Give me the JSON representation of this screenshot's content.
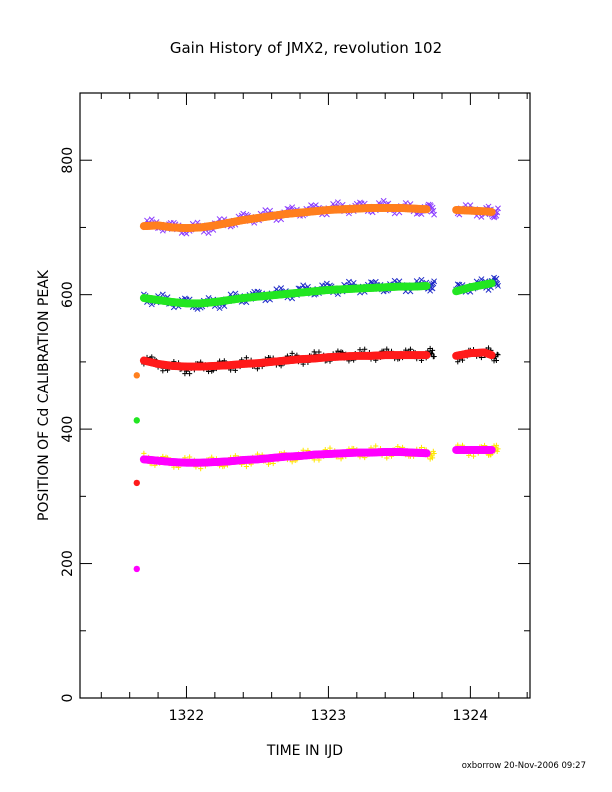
{
  "chart_data": {
    "type": "scatter",
    "title": "Gain History of JMX2, revolution 102",
    "xlabel": "TIME IN IJD",
    "ylabel": "POSITION OF Cd CALIBRATION PEAK",
    "xlim": [
      1321.25,
      1324.42
    ],
    "ylim": [
      0,
      900
    ],
    "xticks": [
      1322,
      1323,
      1324
    ],
    "yticks": [
      0,
      200,
      400,
      600,
      800
    ],
    "grid": false,
    "legend": "none",
    "series": [
      {
        "color": "#8b3dff",
        "marker": "x",
        "points": [
          [
            1321.7,
            702
          ],
          [
            1321.8,
            705
          ],
          [
            1321.9,
            700
          ],
          [
            1322.0,
            698
          ],
          [
            1322.1,
            699
          ],
          [
            1322.2,
            702
          ],
          [
            1322.3,
            708
          ],
          [
            1322.4,
            713
          ],
          [
            1322.5,
            716
          ],
          [
            1322.6,
            718
          ],
          [
            1322.7,
            721
          ],
          [
            1322.8,
            724
          ],
          [
            1322.9,
            726
          ],
          [
            1323.0,
            728
          ],
          [
            1323.1,
            729
          ],
          [
            1323.2,
            730
          ],
          [
            1323.3,
            730
          ],
          [
            1323.4,
            731
          ],
          [
            1323.5,
            729
          ],
          [
            1323.6,
            727
          ],
          [
            1323.7,
            727
          ],
          [
            1323.9,
            726
          ],
          [
            1324.0,
            725
          ],
          [
            1324.1,
            724
          ],
          [
            1324.15,
            722
          ]
        ]
      },
      {
        "color": "#1f2bc8",
        "marker": "x",
        "points": [
          [
            1321.7,
            597
          ],
          [
            1321.8,
            592
          ],
          [
            1321.9,
            590
          ],
          [
            1322.0,
            587
          ],
          [
            1322.1,
            586
          ],
          [
            1322.2,
            587
          ],
          [
            1322.3,
            592
          ],
          [
            1322.4,
            596
          ],
          [
            1322.5,
            598
          ],
          [
            1322.6,
            600
          ],
          [
            1322.7,
            602
          ],
          [
            1322.8,
            605
          ],
          [
            1322.9,
            607
          ],
          [
            1323.0,
            609
          ],
          [
            1323.1,
            610
          ],
          [
            1323.2,
            611
          ],
          [
            1323.3,
            612
          ],
          [
            1323.4,
            612
          ],
          [
            1323.5,
            613
          ],
          [
            1323.6,
            613
          ],
          [
            1323.7,
            614
          ],
          [
            1323.9,
            608
          ],
          [
            1324.0,
            612
          ],
          [
            1324.1,
            615
          ],
          [
            1324.15,
            617
          ]
        ]
      },
      {
        "color": "#000000",
        "marker": "+",
        "points": [
          [
            1321.7,
            503
          ],
          [
            1321.8,
            497
          ],
          [
            1321.9,
            492
          ],
          [
            1322.0,
            490
          ],
          [
            1322.1,
            492
          ],
          [
            1322.2,
            493
          ],
          [
            1322.3,
            495
          ],
          [
            1322.4,
            497
          ],
          [
            1322.5,
            498
          ],
          [
            1322.6,
            500
          ],
          [
            1322.7,
            503
          ],
          [
            1322.8,
            505
          ],
          [
            1322.9,
            507
          ],
          [
            1323.0,
            508
          ],
          [
            1323.1,
            509
          ],
          [
            1323.2,
            510
          ],
          [
            1323.3,
            511
          ],
          [
            1323.4,
            511
          ],
          [
            1323.5,
            511
          ],
          [
            1323.6,
            511
          ],
          [
            1323.7,
            511
          ],
          [
            1323.9,
            508
          ],
          [
            1324.0,
            511
          ],
          [
            1324.1,
            515
          ],
          [
            1324.15,
            510
          ]
        ]
      },
      {
        "color": "#ffe600",
        "marker": "+",
        "points": [
          [
            1321.7,
            356
          ],
          [
            1321.8,
            353
          ],
          [
            1321.9,
            351
          ],
          [
            1322.0,
            350
          ],
          [
            1322.1,
            350
          ],
          [
            1322.2,
            350
          ],
          [
            1322.3,
            352
          ],
          [
            1322.4,
            353
          ],
          [
            1322.5,
            354
          ],
          [
            1322.6,
            356
          ],
          [
            1322.7,
            358
          ],
          [
            1322.8,
            360
          ],
          [
            1322.9,
            362
          ],
          [
            1323.0,
            363
          ],
          [
            1323.1,
            364
          ],
          [
            1323.2,
            365
          ],
          [
            1323.3,
            366
          ],
          [
            1323.4,
            366
          ],
          [
            1323.5,
            366
          ],
          [
            1323.6,
            366
          ],
          [
            1323.7,
            364
          ],
          [
            1323.9,
            368
          ],
          [
            1324.0,
            368
          ],
          [
            1324.1,
            368
          ],
          [
            1324.15,
            368
          ]
        ]
      },
      {
        "color": "#ff7f1e",
        "marker": "fit",
        "points": [
          [
            1321.65,
            480
          ],
          [
            1321.7,
            702
          ],
          [
            1321.8,
            703
          ],
          [
            1321.9,
            700
          ],
          [
            1322.0,
            699
          ],
          [
            1322.1,
            700
          ],
          [
            1322.2,
            703
          ],
          [
            1322.3,
            707
          ],
          [
            1322.4,
            711
          ],
          [
            1322.5,
            714
          ],
          [
            1322.6,
            717
          ],
          [
            1322.7,
            720
          ],
          [
            1322.8,
            722
          ],
          [
            1322.9,
            724
          ],
          [
            1323.0,
            726
          ],
          [
            1323.1,
            727
          ],
          [
            1323.2,
            728
          ],
          [
            1323.3,
            729
          ],
          [
            1323.4,
            729
          ],
          [
            1323.5,
            729
          ],
          [
            1323.6,
            728
          ],
          [
            1323.7,
            727
          ],
          [
            1323.9,
            726
          ],
          [
            1324.0,
            725
          ],
          [
            1324.1,
            724
          ],
          [
            1324.15,
            723
          ]
        ]
      },
      {
        "color": "#22e622",
        "marker": "fit",
        "points": [
          [
            1321.65,
            413
          ],
          [
            1321.7,
            595
          ],
          [
            1321.8,
            592
          ],
          [
            1321.9,
            589
          ],
          [
            1322.0,
            587
          ],
          [
            1322.1,
            587
          ],
          [
            1322.2,
            589
          ],
          [
            1322.3,
            592
          ],
          [
            1322.4,
            595
          ],
          [
            1322.5,
            597
          ],
          [
            1322.6,
            599
          ],
          [
            1322.7,
            601
          ],
          [
            1322.8,
            603
          ],
          [
            1322.9,
            605
          ],
          [
            1323.0,
            607
          ],
          [
            1323.1,
            608
          ],
          [
            1323.2,
            609
          ],
          [
            1323.3,
            610
          ],
          [
            1323.4,
            611
          ],
          [
            1323.5,
            612
          ],
          [
            1323.6,
            612
          ],
          [
            1323.7,
            613
          ],
          [
            1323.9,
            605
          ],
          [
            1324.0,
            611
          ],
          [
            1324.1,
            615
          ],
          [
            1324.15,
            617
          ]
        ]
      },
      {
        "color": "#ff1a1a",
        "marker": "fit",
        "points": [
          [
            1321.65,
            320
          ],
          [
            1321.7,
            502
          ],
          [
            1321.8,
            497
          ],
          [
            1321.9,
            494
          ],
          [
            1322.0,
            493
          ],
          [
            1322.1,
            493
          ],
          [
            1322.2,
            494
          ],
          [
            1322.3,
            495
          ],
          [
            1322.4,
            497
          ],
          [
            1322.5,
            498
          ],
          [
            1322.6,
            500
          ],
          [
            1322.7,
            502
          ],
          [
            1322.8,
            504
          ],
          [
            1322.9,
            505
          ],
          [
            1323.0,
            507
          ],
          [
            1323.1,
            508
          ],
          [
            1323.2,
            509
          ],
          [
            1323.3,
            509
          ],
          [
            1323.4,
            510
          ],
          [
            1323.5,
            510
          ],
          [
            1323.6,
            510
          ],
          [
            1323.7,
            510
          ],
          [
            1323.9,
            509
          ],
          [
            1324.0,
            513
          ],
          [
            1324.1,
            514
          ],
          [
            1324.15,
            510
          ]
        ]
      },
      {
        "color": "#ff00ff",
        "marker": "fit",
        "points": [
          [
            1321.65,
            192
          ],
          [
            1321.7,
            355
          ],
          [
            1321.8,
            353
          ],
          [
            1321.9,
            351
          ],
          [
            1322.0,
            350
          ],
          [
            1322.1,
            350
          ],
          [
            1322.2,
            351
          ],
          [
            1322.3,
            352
          ],
          [
            1322.4,
            354
          ],
          [
            1322.5,
            355
          ],
          [
            1322.6,
            357
          ],
          [
            1322.7,
            359
          ],
          [
            1322.8,
            360
          ],
          [
            1322.9,
            362
          ],
          [
            1323.0,
            363
          ],
          [
            1323.1,
            364
          ],
          [
            1323.2,
            365
          ],
          [
            1323.3,
            365
          ],
          [
            1323.4,
            366
          ],
          [
            1323.5,
            366
          ],
          [
            1323.6,
            365
          ],
          [
            1323.7,
            364
          ],
          [
            1323.9,
            369
          ],
          [
            1324.0,
            369
          ],
          [
            1324.1,
            369
          ],
          [
            1324.15,
            369
          ]
        ]
      }
    ]
  },
  "footer": "oxborrow 20-Nov-2006 09:27"
}
